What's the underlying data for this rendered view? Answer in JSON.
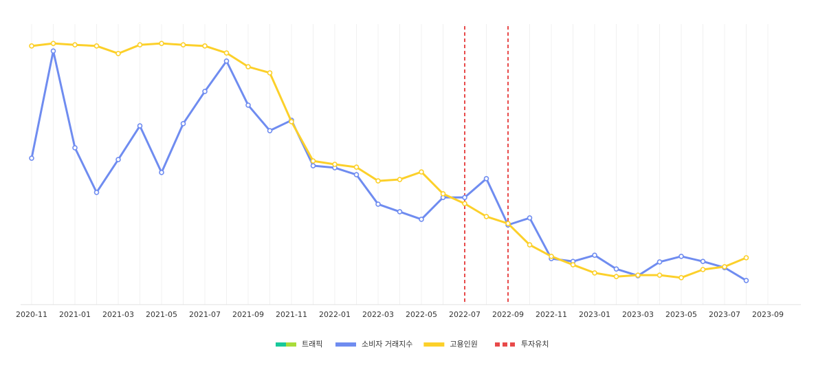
{
  "chart_data": {
    "type": "line",
    "categories": [
      "2020-11",
      null,
      "2021-01",
      null,
      "2021-03",
      null,
      "2021-05",
      null,
      "2021-07",
      null,
      "2021-09",
      null,
      "2021-11",
      null,
      "2022-01",
      null,
      "2022-03",
      null,
      "2022-05",
      null,
      "2022-07",
      null,
      "2022-09",
      null,
      "2022-11",
      null,
      "2023-01",
      null,
      "2023-03",
      null,
      "2023-05",
      null,
      "2023-07",
      null,
      "2023-09"
    ],
    "ylim": [
      0,
      100
    ],
    "grid": true,
    "series": [
      {
        "name": "소비자 거래지수",
        "color": "#6f8cf0",
        "values": [
          52.2,
          90.4,
          55.9,
          40.0,
          51.7,
          63.7,
          47.1,
          64.5,
          76.0,
          86.8,
          71.1,
          62.0,
          65.7,
          49.5,
          48.8,
          46.3,
          35.8,
          33.1,
          30.4,
          38.2,
          38.2,
          44.9,
          28.4,
          30.9,
          16.4,
          15.4,
          17.6,
          12.7,
          10.3,
          15.2,
          17.2,
          15.4,
          13.2,
          8.6,
          null
        ]
      },
      {
        "name": "고용인원",
        "color": "#fcd02a",
        "values": [
          92.2,
          93.1,
          92.6,
          92.2,
          89.5,
          92.6,
          93.1,
          92.6,
          92.2,
          89.7,
          84.8,
          82.6,
          65.2,
          51.2,
          50.0,
          49.0,
          44.1,
          44.6,
          47.3,
          39.5,
          36.0,
          31.4,
          28.9,
          21.3,
          17.2,
          14.2,
          11.3,
          10.0,
          10.5,
          10.5,
          9.6,
          12.5,
          13.5,
          16.7,
          null
        ]
      }
    ],
    "legend_extra": {
      "name": "트래픽",
      "colors": [
        "#18c99b",
        "#a9dc3a"
      ]
    },
    "events": {
      "name": "투자유치",
      "color": "#e84a4a",
      "x": [
        "2022-07",
        "2022-09"
      ]
    },
    "legend": "bottom"
  }
}
